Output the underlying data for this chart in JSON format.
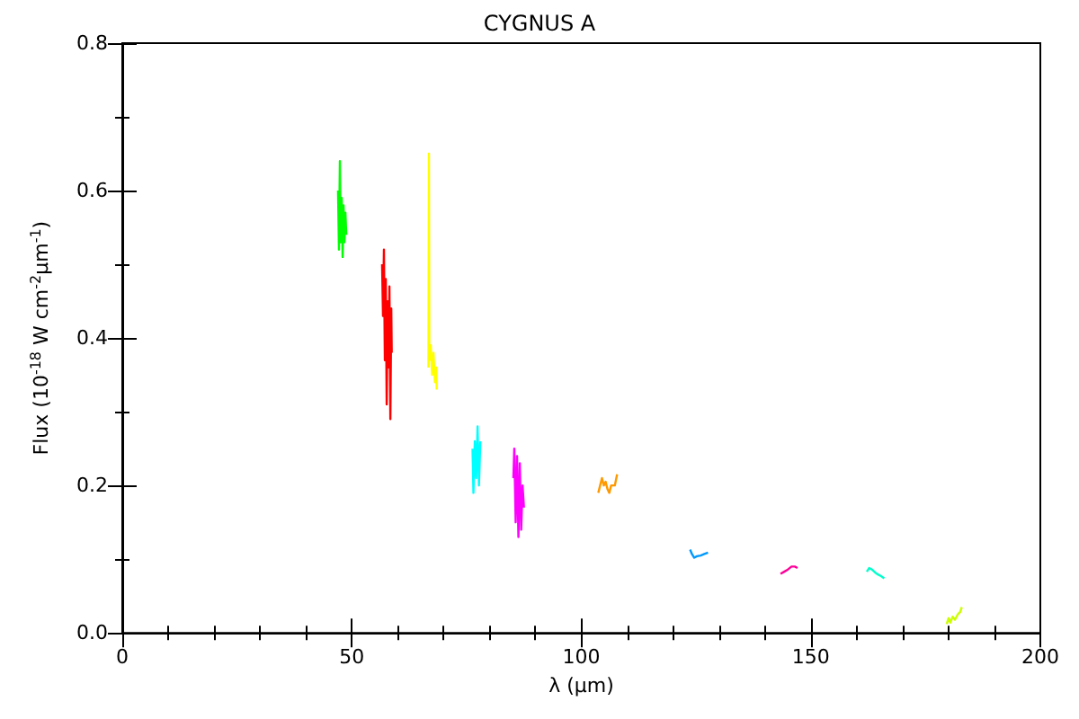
{
  "chart_data": {
    "type": "line",
    "title": "CYGNUS A",
    "xlabel": "λ (μm)",
    "ylabel": "Flux (10$^{-18}$ W cm$^{-2}$μm$^{-1}$)",
    "xlim": [
      0,
      200
    ],
    "xticks": [
      0,
      50,
      100,
      150,
      200
    ],
    "ylim": [
      0,
      0.8
    ],
    "yticks": [
      {
        "value": 0,
        "label": "0.0"
      },
      {
        "value": 0.2,
        "label": "0.2"
      },
      {
        "value": 0.4,
        "label": "0.4"
      },
      {
        "value": 0.6,
        "label": "0.6"
      },
      {
        "value": 0.8,
        "label": "0.8"
      }
    ],
    "grid": false,
    "marker": "none",
    "line_style": "solid",
    "series": [
      {
        "color": "#00ff00",
        "x": [
          47.0,
          47.2,
          47.4,
          47.6,
          47.8,
          48.0,
          48.2,
          48.4,
          48.6,
          48.8
        ],
        "values": [
          0.6,
          0.52,
          0.64,
          0.53,
          0.59,
          0.51,
          0.58,
          0.53,
          0.57,
          0.54
        ]
      },
      {
        "color": "#ff0000",
        "x": [
          56.6,
          56.8,
          57.0,
          57.2,
          57.4,
          57.6,
          57.8,
          58.0,
          58.2,
          58.4,
          58.6,
          58.7
        ],
        "values": [
          0.5,
          0.43,
          0.52,
          0.37,
          0.48,
          0.31,
          0.45,
          0.36,
          0.47,
          0.29,
          0.44,
          0.38
        ]
      },
      {
        "color": "#ffff00",
        "x": [
          66.7,
          66.8,
          66.9,
          67.2,
          67.5,
          67.8,
          68.1,
          68.4,
          68.5
        ],
        "values": [
          0.36,
          0.65,
          0.37,
          0.39,
          0.35,
          0.38,
          0.34,
          0.36,
          0.33
        ]
      },
      {
        "color": "#00ffff",
        "x": [
          76.3,
          76.5,
          76.8,
          77.1,
          77.4,
          77.7,
          78.0
        ],
        "values": [
          0.25,
          0.19,
          0.26,
          0.21,
          0.28,
          0.2,
          0.26
        ]
      },
      {
        "color": "#ff00ff",
        "x": [
          85.2,
          85.4,
          85.7,
          86.0,
          86.3,
          86.6,
          86.9,
          87.2,
          87.5
        ],
        "values": [
          0.21,
          0.25,
          0.15,
          0.24,
          0.13,
          0.23,
          0.14,
          0.2,
          0.17
        ]
      },
      {
        "color": "#ff9900",
        "x": [
          103.7,
          104.1,
          104.5,
          104.9,
          105.3,
          105.7,
          106.1,
          106.5,
          106.9,
          107.3,
          107.8
        ],
        "values": [
          0.19,
          0.2,
          0.21,
          0.2,
          0.205,
          0.195,
          0.19,
          0.2,
          0.2,
          0.2,
          0.215
        ]
      },
      {
        "color": "#0099ff",
        "x": [
          123.7,
          124.1,
          124.6,
          125.2,
          126.0,
          126.8,
          127.6
        ],
        "values": [
          0.113,
          0.107,
          0.102,
          0.104,
          0.105,
          0.107,
          0.109
        ]
      },
      {
        "color": "#ff0099",
        "x": [
          143.4,
          144.2,
          145.0,
          145.8,
          146.5,
          147.1
        ],
        "values": [
          0.08,
          0.083,
          0.086,
          0.09,
          0.09,
          0.088
        ]
      },
      {
        "color": "#00ffcc",
        "x": [
          162.2,
          162.7,
          163.3,
          164.0,
          164.7,
          165.3,
          166.0
        ],
        "values": [
          0.083,
          0.088,
          0.086,
          0.082,
          0.079,
          0.077,
          0.074
        ]
      },
      {
        "color": "#ccff00",
        "x": [
          179.6,
          180.0,
          180.4,
          180.9,
          181.4,
          182.0,
          182.5,
          182.9
        ],
        "values": [
          0.012,
          0.02,
          0.014,
          0.022,
          0.018,
          0.025,
          0.028,
          0.035
        ]
      }
    ]
  }
}
